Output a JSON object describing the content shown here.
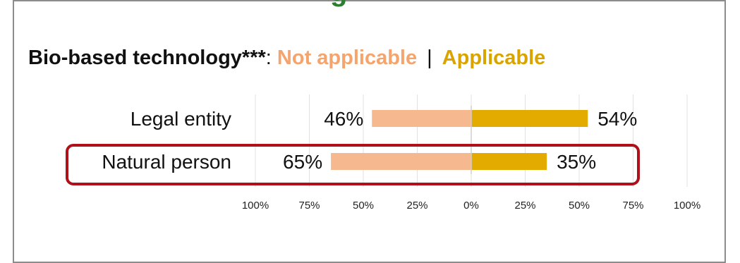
{
  "chart_data": {
    "type": "bar",
    "orientation": "horizontal-diverging",
    "title": "Bio-based technology***",
    "title_colon": ":",
    "legend_separator": "|",
    "categories": [
      "Legal entity",
      "Natural person"
    ],
    "series": [
      {
        "name": "Not applicable",
        "values": [
          46,
          65
        ],
        "color": "#f6b88e",
        "direction": "left"
      },
      {
        "name": "Applicable",
        "values": [
          54,
          35
        ],
        "color": "#e3aa00",
        "direction": "right"
      }
    ],
    "value_labels": [
      [
        "46%",
        "54%"
      ],
      [
        "65%",
        "35%"
      ]
    ],
    "x_tick_labels": [
      "100%",
      "75%",
      "50%",
      "25%",
      "0%",
      "25%",
      "50%",
      "75%",
      "100%"
    ],
    "x_ticks": [
      -100,
      -75,
      -50,
      -25,
      0,
      25,
      50,
      75,
      100
    ],
    "xlim": [
      -100,
      100
    ],
    "grid": true,
    "highlighted_category": "Natural person",
    "highlight_color": "#b0101a"
  }
}
